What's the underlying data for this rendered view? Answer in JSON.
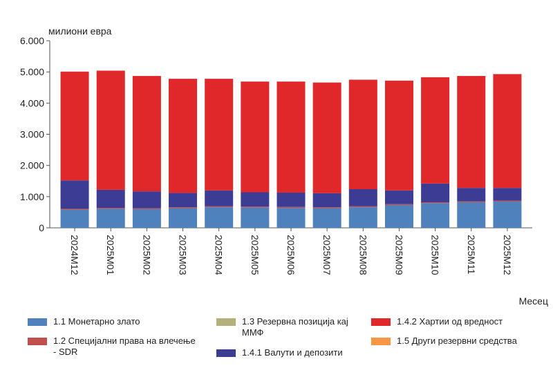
{
  "chart_data": {
    "type": "bar",
    "stacked": true,
    "title": "",
    "ylabel": "милиони евра",
    "xlabel": "Месец",
    "ylim": [
      0,
      6000
    ],
    "yticks": [
      "0",
      "1.000",
      "2.000",
      "3.000",
      "4.000",
      "5.000",
      "6.000"
    ],
    "ytick_values": [
      0,
      1000,
      2000,
      3000,
      4000,
      5000,
      6000
    ],
    "categories": [
      "2024M12",
      "2025M01",
      "2025M02",
      "2025M03",
      "2025M04",
      "2025M05",
      "2025M06",
      "2025M07",
      "2025M08",
      "2025M09",
      "2025M10",
      "2025M11",
      "2025M12"
    ],
    "series": [
      {
        "name": "1.1 Монетарно злато",
        "color": "#4f81bd",
        "values": [
          580,
          610,
          600,
          630,
          660,
          650,
          640,
          630,
          660,
          730,
          790,
          820,
          840
        ]
      },
      {
        "name": "1.2  Специјални права на влечење - SDR",
        "color": "#c0504d",
        "values": [
          30,
          30,
          30,
          30,
          30,
          30,
          30,
          30,
          30,
          30,
          30,
          30,
          30
        ]
      },
      {
        "name": "1.3 Резервна позиција кај ММФ",
        "color": "#b5b07a",
        "values": [
          0,
          0,
          0,
          0,
          0,
          0,
          0,
          0,
          0,
          0,
          0,
          0,
          0
        ]
      },
      {
        "name": "1.4.1 Валути и депозити",
        "color": "#3d3c94",
        "values": [
          910,
          580,
          540,
          460,
          510,
          460,
          460,
          450,
          550,
          440,
          600,
          430,
          410
        ]
      },
      {
        "name": "1.4.2 Хартии од вредност",
        "color": "#e0282b",
        "values": [
          3490,
          3820,
          3700,
          3660,
          3580,
          3550,
          3560,
          3550,
          3510,
          3520,
          3410,
          3590,
          3650
        ]
      },
      {
        "name": "1.5 Други резервни средства",
        "color": "#f79646",
        "values": [
          0,
          0,
          0,
          0,
          0,
          0,
          0,
          0,
          0,
          0,
          0,
          0,
          0
        ]
      }
    ],
    "grid": false,
    "legend_position": "bottom"
  },
  "legend_items": [
    {
      "label": "1.1 Монетарно злато",
      "color": "#4f81bd"
    },
    {
      "label": "1.2  Специјални права на влечење\n- SDR",
      "color": "#c0504d"
    },
    {
      "label": "1.3 Резервна позиција кај\nММФ",
      "color": "#b5b07a"
    },
    {
      "label": "1.4.1 Валути и депозити",
      "color": "#3d3c94"
    },
    {
      "label": "1.4.2 Хартии од вредност",
      "color": "#e0282b"
    },
    {
      "label": "1.5 Други резервни средства",
      "color": "#f79646"
    }
  ]
}
